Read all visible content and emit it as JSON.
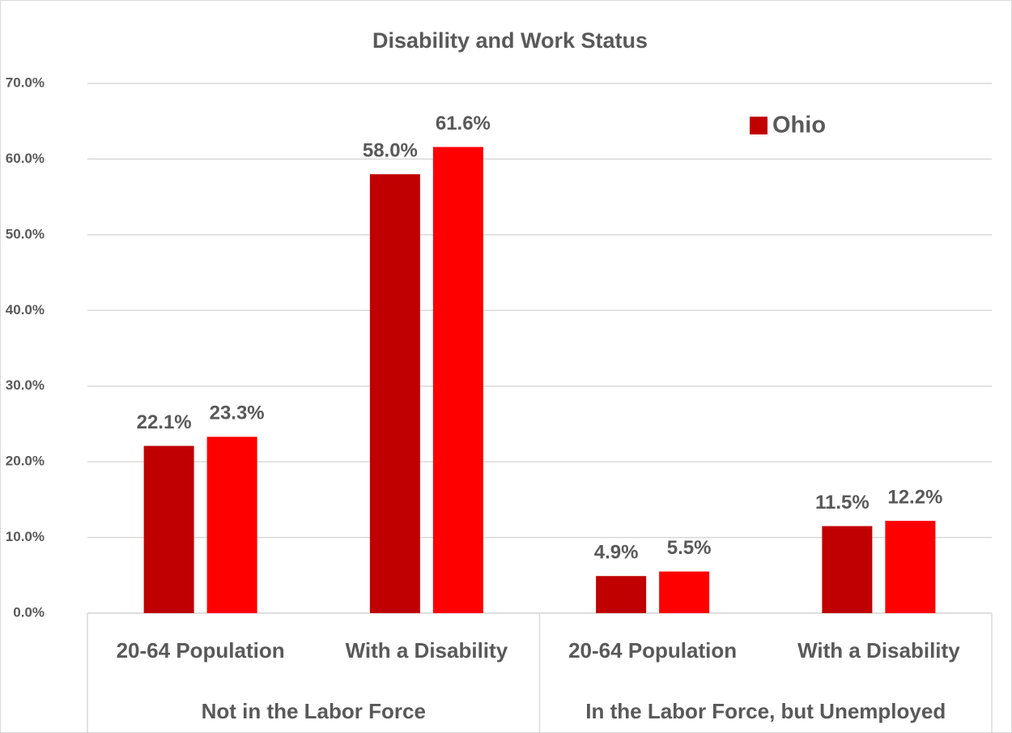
{
  "chart_data": {
    "type": "bar",
    "title": "Disability and Work Status",
    "categories": [
      "20-64 Population",
      "With a Disability",
      "20-64 Population",
      "With a Disability"
    ],
    "group_labels": [
      "Not in the Labor Force",
      "In the Labor Force, but Unemployed"
    ],
    "series": [
      {
        "name": "Ohio",
        "color": "#c00000",
        "values": [
          22.1,
          58.0,
          4.9,
          11.5
        ],
        "value_labels": [
          "22.1%",
          "58.0%",
          "4.9%",
          "11.5%"
        ]
      },
      {
        "color": "#ff0000",
        "values": [
          23.3,
          61.6,
          5.5,
          12.2
        ],
        "value_labels": [
          "23.3%",
          "61.6%",
          "5.5%",
          "12.2%"
        ]
      }
    ],
    "ylim": [
      0,
      70
    ],
    "yticks": [
      {
        "value": 0,
        "label": "0.0%"
      },
      {
        "value": 10,
        "label": "10.0%"
      },
      {
        "value": 20,
        "label": "20.0%"
      },
      {
        "value": 30,
        "label": "30.0%"
      },
      {
        "value": 40,
        "label": "40.0%"
      },
      {
        "value": 50,
        "label": "50.0%"
      },
      {
        "value": 60,
        "label": "60.0%"
      },
      {
        "value": 70,
        "label": "70.0%"
      }
    ],
    "grid": true,
    "legend": "upper right"
  }
}
